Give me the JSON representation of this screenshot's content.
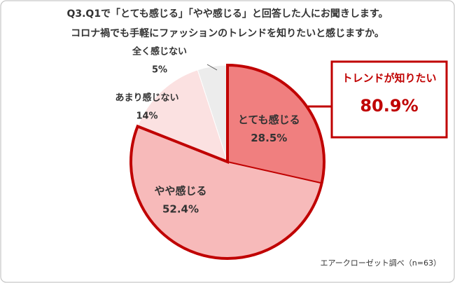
{
  "chart_data": {
    "type": "pie",
    "title": [
      "Q3.Q1で「とても感じる」「やや感じる」と回答した人にお聞きします。",
      "コロナ禍でも手軽にファッションのトレンドを知りたいと感じますか。"
    ],
    "categories": [
      "とても感じる",
      "やや感じる",
      "あまり感じない",
      "全く感じない"
    ],
    "values": [
      28.5,
      52.4,
      14,
      5
    ],
    "value_labels": [
      "28.5%",
      "52.4%",
      "14%",
      "5%"
    ],
    "colors": [
      "#f07f7f",
      "#f7baba",
      "#fbe1e1",
      "#ececec"
    ],
    "callout": {
      "title": "トレンドが知りたい",
      "value_label": "80.9%"
    },
    "source": "エアークローゼット調べ（n=63）"
  }
}
